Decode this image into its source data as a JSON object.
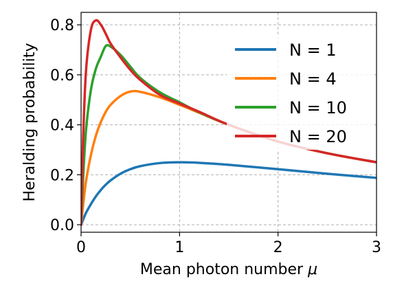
{
  "chart_data": {
    "type": "line",
    "title": "",
    "xlabel": "Mean photon number",
    "xlabel_symbol": "μ",
    "ylabel": "Heralding probability",
    "xlim": [
      0,
      3
    ],
    "ylim": [
      -0.03,
      0.85
    ],
    "xticks": [
      0,
      1,
      2,
      3
    ],
    "xtick_labels": [
      "0",
      "1",
      "2",
      "3"
    ],
    "yticks": [
      0.0,
      0.2,
      0.4,
      0.6,
      0.8
    ],
    "ytick_labels": [
      "0.0",
      "0.2",
      "0.4",
      "0.6",
      "0.8"
    ],
    "grid": true,
    "legend_position": "top-right",
    "x": [
      0,
      0.02,
      0.05,
      0.1,
      0.15,
      0.2,
      0.25,
      0.3,
      0.4,
      0.5,
      0.6,
      0.8,
      1.0,
      1.2,
      1.5,
      2.0,
      2.5,
      3.0
    ],
    "series": [
      {
        "name": "N = 1",
        "color": "#1f77b4",
        "values": [
          0,
          0.0196,
          0.0476,
          0.0826,
          0.1134,
          0.1389,
          0.16,
          0.1775,
          0.2041,
          0.2222,
          0.2344,
          0.2469,
          0.25,
          0.2479,
          0.24,
          0.2222,
          0.2041,
          0.1875
        ]
      },
      {
        "name": "N = 4",
        "color": "#ff7f0e",
        "values": [
          0,
          0.0763,
          0.1736,
          0.2795,
          0.3561,
          0.4102,
          0.4512,
          0.48,
          0.515,
          0.533,
          0.532,
          0.51,
          0.48,
          0.448,
          0.4,
          0.333,
          0.286,
          0.25
        ]
      },
      {
        "name": "N = 10",
        "color": "#2ca02c",
        "values": [
          0,
          0.18,
          0.378,
          0.54,
          0.624,
          0.672,
          0.715,
          0.713,
          0.68,
          0.633,
          0.588,
          0.53,
          0.49,
          0.45,
          0.4,
          0.333,
          0.286,
          0.25
        ]
      },
      {
        "name": "N = 20",
        "color": "#d62728",
        "values": [
          0,
          0.333,
          0.615,
          0.78,
          0.818,
          0.801,
          0.765,
          0.725,
          0.67,
          0.62,
          0.58,
          0.52,
          0.485,
          0.452,
          0.4,
          0.333,
          0.286,
          0.25
        ]
      }
    ]
  }
}
